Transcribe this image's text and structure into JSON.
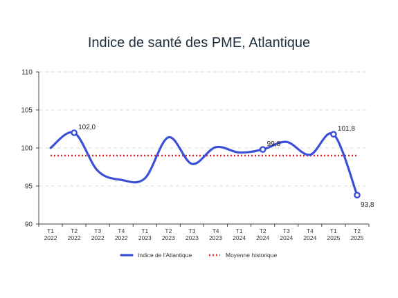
{
  "chart_data": {
    "type": "line",
    "title": "Indice de santé des PME, Atlantique",
    "categories": [
      [
        "T1",
        "2022"
      ],
      [
        "T2",
        "2022"
      ],
      [
        "T3",
        "2022"
      ],
      [
        "T4",
        "2022"
      ],
      [
        "T1",
        "2023"
      ],
      [
        "T2",
        "2023"
      ],
      [
        "T3",
        "2023"
      ],
      [
        "T4",
        "2023"
      ],
      [
        "T1",
        "2024"
      ],
      [
        "T2",
        "2024"
      ],
      [
        "T3",
        "2024"
      ],
      [
        "T4",
        "2024"
      ],
      [
        "T1",
        "2025"
      ],
      [
        "T2",
        "2025"
      ]
    ],
    "series": [
      {
        "name": "Indice de l'Atlantique",
        "color": "#3b4fd8",
        "values": [
          100.0,
          102.0,
          97.0,
          95.8,
          96.0,
          101.4,
          97.9,
          100.1,
          99.4,
          99.8,
          100.8,
          99.1,
          101.8,
          93.8
        ]
      },
      {
        "name": "Moyenne historique",
        "color": "#e02020",
        "style": "dotted",
        "values": [
          99.0,
          99.0,
          99.0,
          99.0,
          99.0,
          99.0,
          99.0,
          99.0,
          99.0,
          99.0,
          99.0,
          99.0,
          99.0,
          99.0
        ]
      }
    ],
    "annotations": [
      {
        "index": 1,
        "text": "102,0"
      },
      {
        "index": 9,
        "text": "99,8"
      },
      {
        "index": 12,
        "text": "101,8"
      },
      {
        "index": 13,
        "text": "93,8"
      }
    ],
    "ylim": [
      90,
      110
    ],
    "yticks": [
      "90",
      "95",
      "100",
      "105",
      "110"
    ],
    "grid": true,
    "legend_position": "bottom"
  }
}
